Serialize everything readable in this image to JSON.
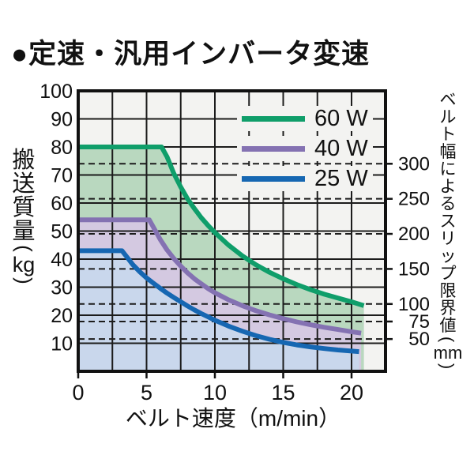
{
  "page": {
    "title": "●定速・汎用インバータ変速"
  },
  "colors": {
    "background": "#ffffff",
    "plot_background": "#f3f3f1",
    "grid": "#1c1c1c",
    "border": "#111111",
    "text": "#111111"
  },
  "chart_data": {
    "type": "area",
    "title": "●定速・汎用インバータ変速",
    "xlabel": "ベルト速度（m/min）",
    "ylabel": "搬送質量（kg）",
    "ylabel_chars": "搬送質量",
    "ylabel_unit": "kg",
    "y2label": "ベルト幅によるスリップ限界値（mm）",
    "y2label_chars": "ベルト幅によるスリップ限界値",
    "y2label_unit": "mm",
    "xlim": [
      0,
      22.4
    ],
    "ylim": [
      0,
      100
    ],
    "x_tick_labels": [
      0,
      5,
      10,
      15,
      20
    ],
    "x_grid_step": 2.5,
    "y_tick_labels": [
      10,
      20,
      30,
      40,
      50,
      60,
      70,
      80,
      90,
      100
    ],
    "y_grid_step": 10,
    "grid": "on",
    "legend_position": "top-right-inside",
    "series": [
      {
        "name": "60 W",
        "color": "#0f9e6a",
        "fill": "#b9d8bf",
        "points": [
          [
            0,
            80
          ],
          [
            6.1,
            80
          ],
          [
            6.5,
            76.5
          ],
          [
            7,
            70.5
          ],
          [
            7.5,
            65.7
          ],
          [
            8,
            61.5
          ],
          [
            8.5,
            58
          ],
          [
            9,
            54.8
          ],
          [
            9.5,
            52
          ],
          [
            10,
            49.5
          ],
          [
            11,
            45
          ],
          [
            12,
            41.2
          ],
          [
            13,
            38
          ],
          [
            14,
            35.3
          ],
          [
            15,
            33
          ],
          [
            16,
            30.9
          ],
          [
            17,
            29.1
          ],
          [
            18,
            27.5
          ],
          [
            19,
            26.1
          ],
          [
            20,
            24.8
          ],
          [
            20.9,
            23.4
          ]
        ]
      },
      {
        "name": "40 W",
        "color": "#8472b2",
        "fill": "#d4c9e1",
        "points": [
          [
            0,
            54
          ],
          [
            5.2,
            54
          ],
          [
            5.6,
            50.5
          ],
          [
            6,
            47
          ],
          [
            6.5,
            43.3
          ],
          [
            7,
            40.2
          ],
          [
            7.5,
            37.5
          ],
          [
            8,
            35.1
          ],
          [
            8.5,
            33
          ],
          [
            9,
            31.2
          ],
          [
            9.5,
            29.5
          ],
          [
            10,
            28
          ],
          [
            11,
            25.5
          ],
          [
            12,
            23.4
          ],
          [
            13,
            21.6
          ],
          [
            14,
            20.1
          ],
          [
            15,
            18.8
          ],
          [
            16,
            17.6
          ],
          [
            17,
            16.6
          ],
          [
            18,
            15.7
          ],
          [
            19,
            14.9
          ],
          [
            20,
            14.1
          ],
          [
            20.7,
            13.6
          ]
        ]
      },
      {
        "name": "25 W",
        "color": "#1667b2",
        "fill": "#c9d7ec",
        "points": [
          [
            0,
            43
          ],
          [
            3.2,
            43
          ],
          [
            3.6,
            40.5
          ],
          [
            4,
            38
          ],
          [
            4.5,
            35.5
          ],
          [
            5,
            33.3
          ],
          [
            5.5,
            31.4
          ],
          [
            6,
            29.6
          ],
          [
            6.5,
            27.9
          ],
          [
            7,
            26.3
          ],
          [
            7.5,
            24.8
          ],
          [
            8,
            23.3
          ],
          [
            8.5,
            21.9
          ],
          [
            9,
            20.6
          ],
          [
            9.5,
            19.4
          ],
          [
            10,
            18.2
          ],
          [
            11,
            16.1
          ],
          [
            12,
            14.3
          ],
          [
            13,
            12.7
          ],
          [
            14,
            11.4
          ],
          [
            15,
            10.3
          ],
          [
            16,
            9.4
          ],
          [
            17,
            8.7
          ],
          [
            18,
            8.1
          ],
          [
            19,
            7.6
          ],
          [
            20,
            7.2
          ],
          [
            20.55,
            7
          ]
        ]
      }
    ],
    "slip_limits": [
      {
        "label": "300",
        "kg": 74
      },
      {
        "label": "250",
        "kg": 61.5
      },
      {
        "label": "200",
        "kg": 49
      },
      {
        "label": "150",
        "kg": 36.5
      },
      {
        "label": "100",
        "kg": 24
      },
      {
        "label": "75",
        "kg": 17.75
      },
      {
        "label": "50",
        "kg": 11.5
      }
    ]
  }
}
